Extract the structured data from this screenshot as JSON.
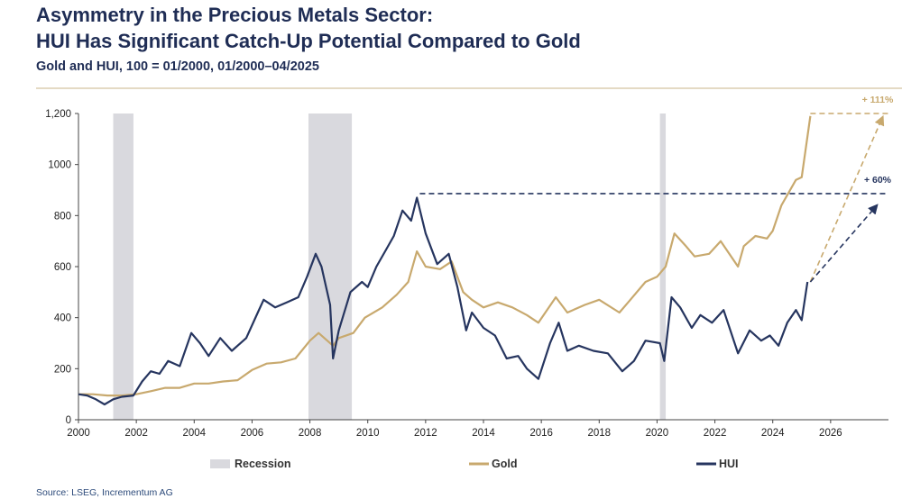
{
  "chart_data": {
    "type": "line",
    "title": "Asymmetry in the Precious Metals Sector:",
    "title_line2": "HUI Has Significant Catch-Up Potential Compared to Gold",
    "subtitle": "Gold and HUI, 100 = 01/2000, 01/2000–04/2025",
    "source": "Source: LSEG, Incrementum AG",
    "xlim": [
      2000,
      2028
    ],
    "xticks": [
      2000,
      2002,
      2004,
      2006,
      2008,
      2010,
      2012,
      2014,
      2016,
      2018,
      2020,
      2022,
      2024,
      2026
    ],
    "ylim": [
      0,
      1200
    ],
    "yticks": [
      0,
      200,
      400,
      600,
      800,
      1000,
      {
        "value": 1200,
        "label": "1,200"
      }
    ],
    "recession": {
      "name": "Recession",
      "color": "#d9d9de",
      "periods": [
        [
          2001.2,
          2001.9
        ],
        [
          2007.95,
          2009.45
        ],
        [
          2020.1,
          2020.3
        ]
      ]
    },
    "series": [
      {
        "name": "Gold",
        "color": "#c8a96e",
        "x": [
          2000,
          2000.5,
          2001,
          2001.5,
          2002,
          2002.5,
          2003,
          2003.5,
          2004,
          2004.5,
          2005,
          2005.5,
          2006,
          2006.5,
          2007,
          2007.5,
          2008,
          2008.3,
          2008.8,
          2009,
          2009.5,
          2009.9,
          2010.5,
          2011,
          2011.4,
          2011.7,
          2012,
          2012.5,
          2012.9,
          2013.3,
          2013.6,
          2014,
          2014.5,
          2015,
          2015.5,
          2015.9,
          2016.5,
          2016.9,
          2017.5,
          2018,
          2018.7,
          2019,
          2019.6,
          2020,
          2020.3,
          2020.6,
          2021,
          2021.3,
          2021.8,
          2022.2,
          2022.8,
          2023,
          2023.4,
          2023.8,
          2024,
          2024.3,
          2024.8,
          2025,
          2025.3
        ],
        "values": [
          100,
          100,
          95,
          95,
          100,
          112,
          125,
          125,
          142,
          142,
          150,
          155,
          195,
          220,
          225,
          240,
          310,
          340,
          290,
          320,
          340,
          400,
          440,
          490,
          540,
          660,
          600,
          590,
          620,
          500,
          470,
          440,
          460,
          440,
          410,
          380,
          480,
          420,
          450,
          470,
          420,
          460,
          540,
          560,
          600,
          730,
          680,
          640,
          650,
          700,
          600,
          680,
          720,
          710,
          740,
          840,
          940,
          950,
          1190
        ]
      },
      {
        "name": "HUI",
        "color": "#26355f",
        "x": [
          2000,
          2000.3,
          2000.6,
          2000.9,
          2001.2,
          2001.5,
          2001.9,
          2002.2,
          2002.5,
          2002.8,
          2003.1,
          2003.5,
          2003.9,
          2004.2,
          2004.5,
          2004.9,
          2005.3,
          2005.8,
          2006.2,
          2006.4,
          2006.8,
          2007.2,
          2007.6,
          2007.9,
          2008.2,
          2008.4,
          2008.7,
          2008.8,
          2009,
          2009.4,
          2009.8,
          2010,
          2010.3,
          2010.6,
          2010.9,
          2011.2,
          2011.5,
          2011.7,
          2012,
          2012.4,
          2012.8,
          2013.1,
          2013.4,
          2013.6,
          2014,
          2014.4,
          2014.8,
          2015.2,
          2015.5,
          2015.9,
          2016.3,
          2016.6,
          2016.9,
          2017.3,
          2017.8,
          2018.3,
          2018.8,
          2019.2,
          2019.6,
          2020.1,
          2020.25,
          2020.5,
          2020.8,
          2021.2,
          2021.5,
          2021.9,
          2022.3,
          2022.8,
          2023.2,
          2023.6,
          2023.9,
          2024.2,
          2024.5,
          2024.8,
          2025,
          2025.2
        ],
        "values": [
          100,
          95,
          80,
          60,
          80,
          90,
          95,
          150,
          190,
          180,
          230,
          210,
          340,
          300,
          250,
          320,
          270,
          320,
          420,
          470,
          440,
          460,
          480,
          560,
          650,
          600,
          450,
          240,
          350,
          500,
          540,
          520,
          600,
          660,
          720,
          820,
          780,
          870,
          730,
          610,
          650,
          520,
          350,
          420,
          360,
          330,
          240,
          250,
          200,
          160,
          300,
          380,
          270,
          290,
          270,
          260,
          190,
          230,
          310,
          300,
          230,
          480,
          440,
          360,
          410,
          380,
          430,
          260,
          350,
          310,
          330,
          290,
          380,
          430,
          390,
          540
        ]
      }
    ],
    "annotations": [
      {
        "text": "+ 111%",
        "color": "#c8a96e",
        "level": 1200,
        "level_from": 2025.3,
        "arrow_from": [
          2025.3,
          540
        ],
        "arrow_to": [
          2027.8,
          1186
        ]
      },
      {
        "text": "+ 60%",
        "color": "#26355f",
        "level": 886,
        "level_from": 2011.8,
        "arrow_from": [
          2025.3,
          540
        ],
        "arrow_to": [
          2027.6,
          840
        ]
      }
    ]
  }
}
